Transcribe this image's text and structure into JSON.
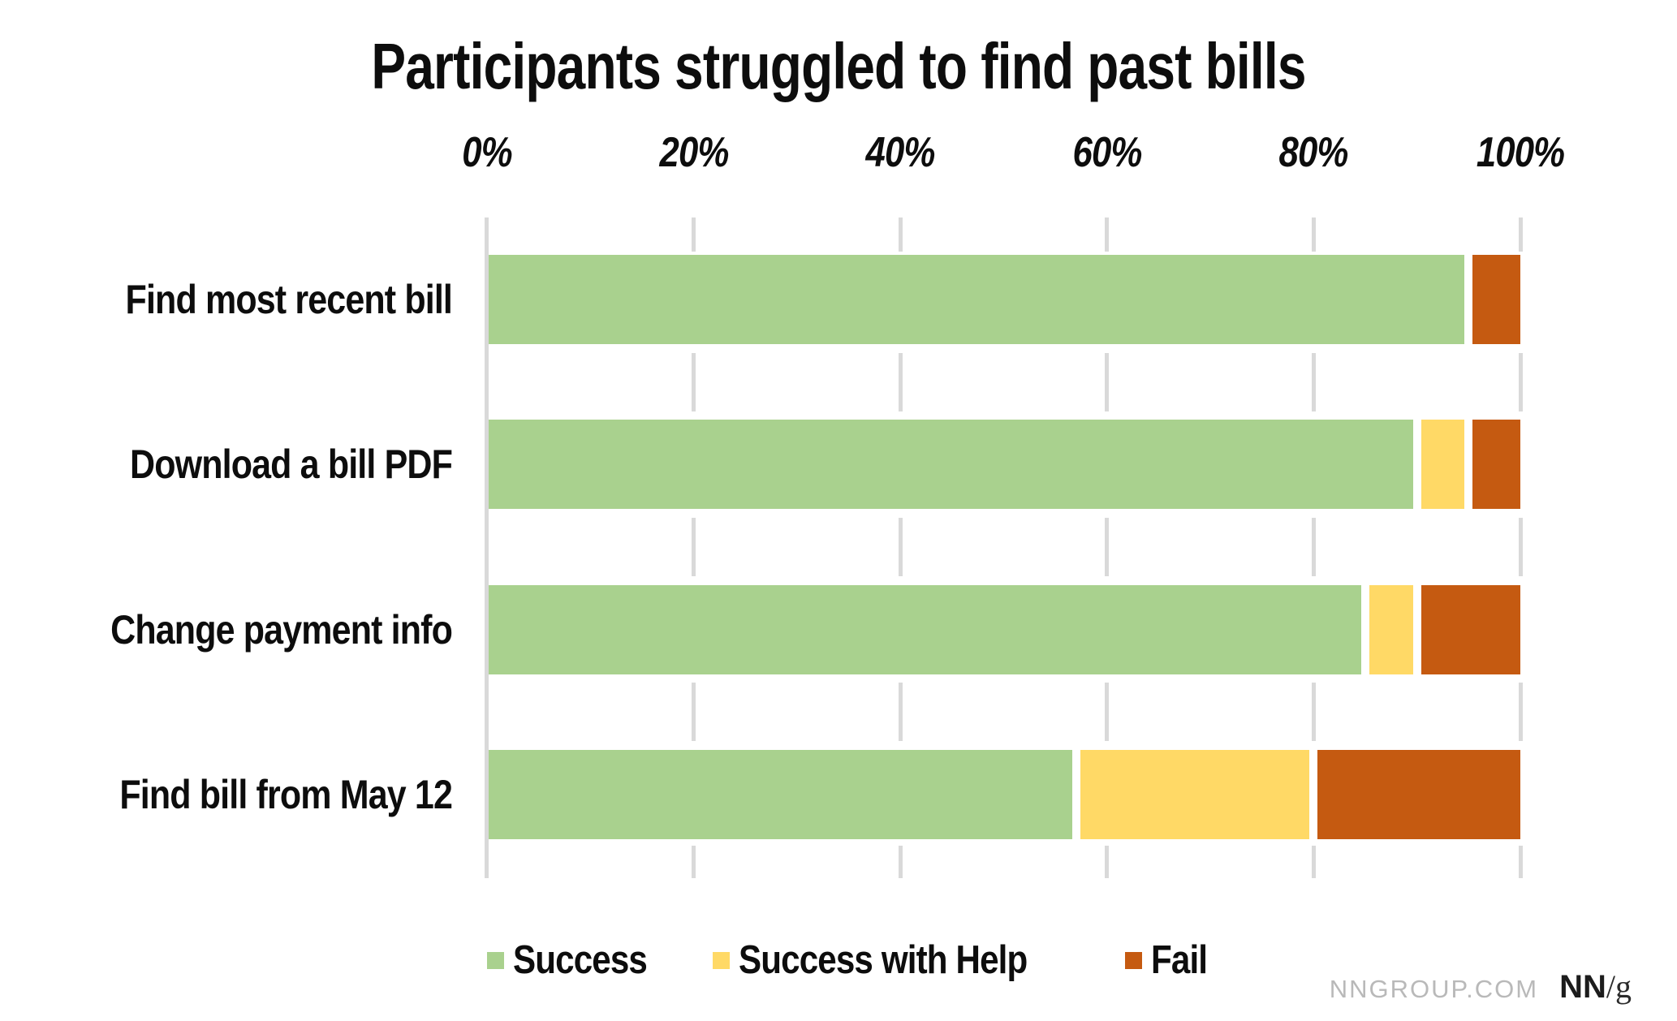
{
  "title": "Participants struggled to find past bills",
  "footer": {
    "site": "NNGROUP.COM",
    "logo_nn": "NN",
    "logo_slash_g": "/g"
  },
  "chart_data": {
    "type": "bar",
    "orientation": "horizontal",
    "stacked": true,
    "title": "Participants struggled to find past bills",
    "categories": [
      "Find most recent bill",
      "Download a bill PDF",
      "Change payment info",
      "Find bill from May 12"
    ],
    "series": [
      {
        "name": "Success",
        "color": "#a9d18e",
        "values": [
          95,
          90,
          85,
          57
        ]
      },
      {
        "name": "Success with Help",
        "color": "#ffd966",
        "values": [
          0,
          5,
          5,
          23
        ]
      },
      {
        "name": "Fail",
        "color": "#c55a11",
        "values": [
          5,
          5,
          10,
          20
        ]
      }
    ],
    "x_axis": {
      "position": "top",
      "min": 0,
      "max": 100,
      "tick_labels": [
        "0%",
        "20%",
        "40%",
        "60%",
        "80%",
        "100%"
      ],
      "tick_values": [
        0,
        20,
        40,
        60,
        80,
        100
      ]
    },
    "ylabel": "",
    "xlabel": "",
    "legend": {
      "position": "bottom",
      "entries": [
        "Success",
        "Success with Help",
        "Fail"
      ]
    },
    "grid": {
      "shown": true,
      "color": "#d9d9d9",
      "style": "segmented-ticks"
    }
  }
}
